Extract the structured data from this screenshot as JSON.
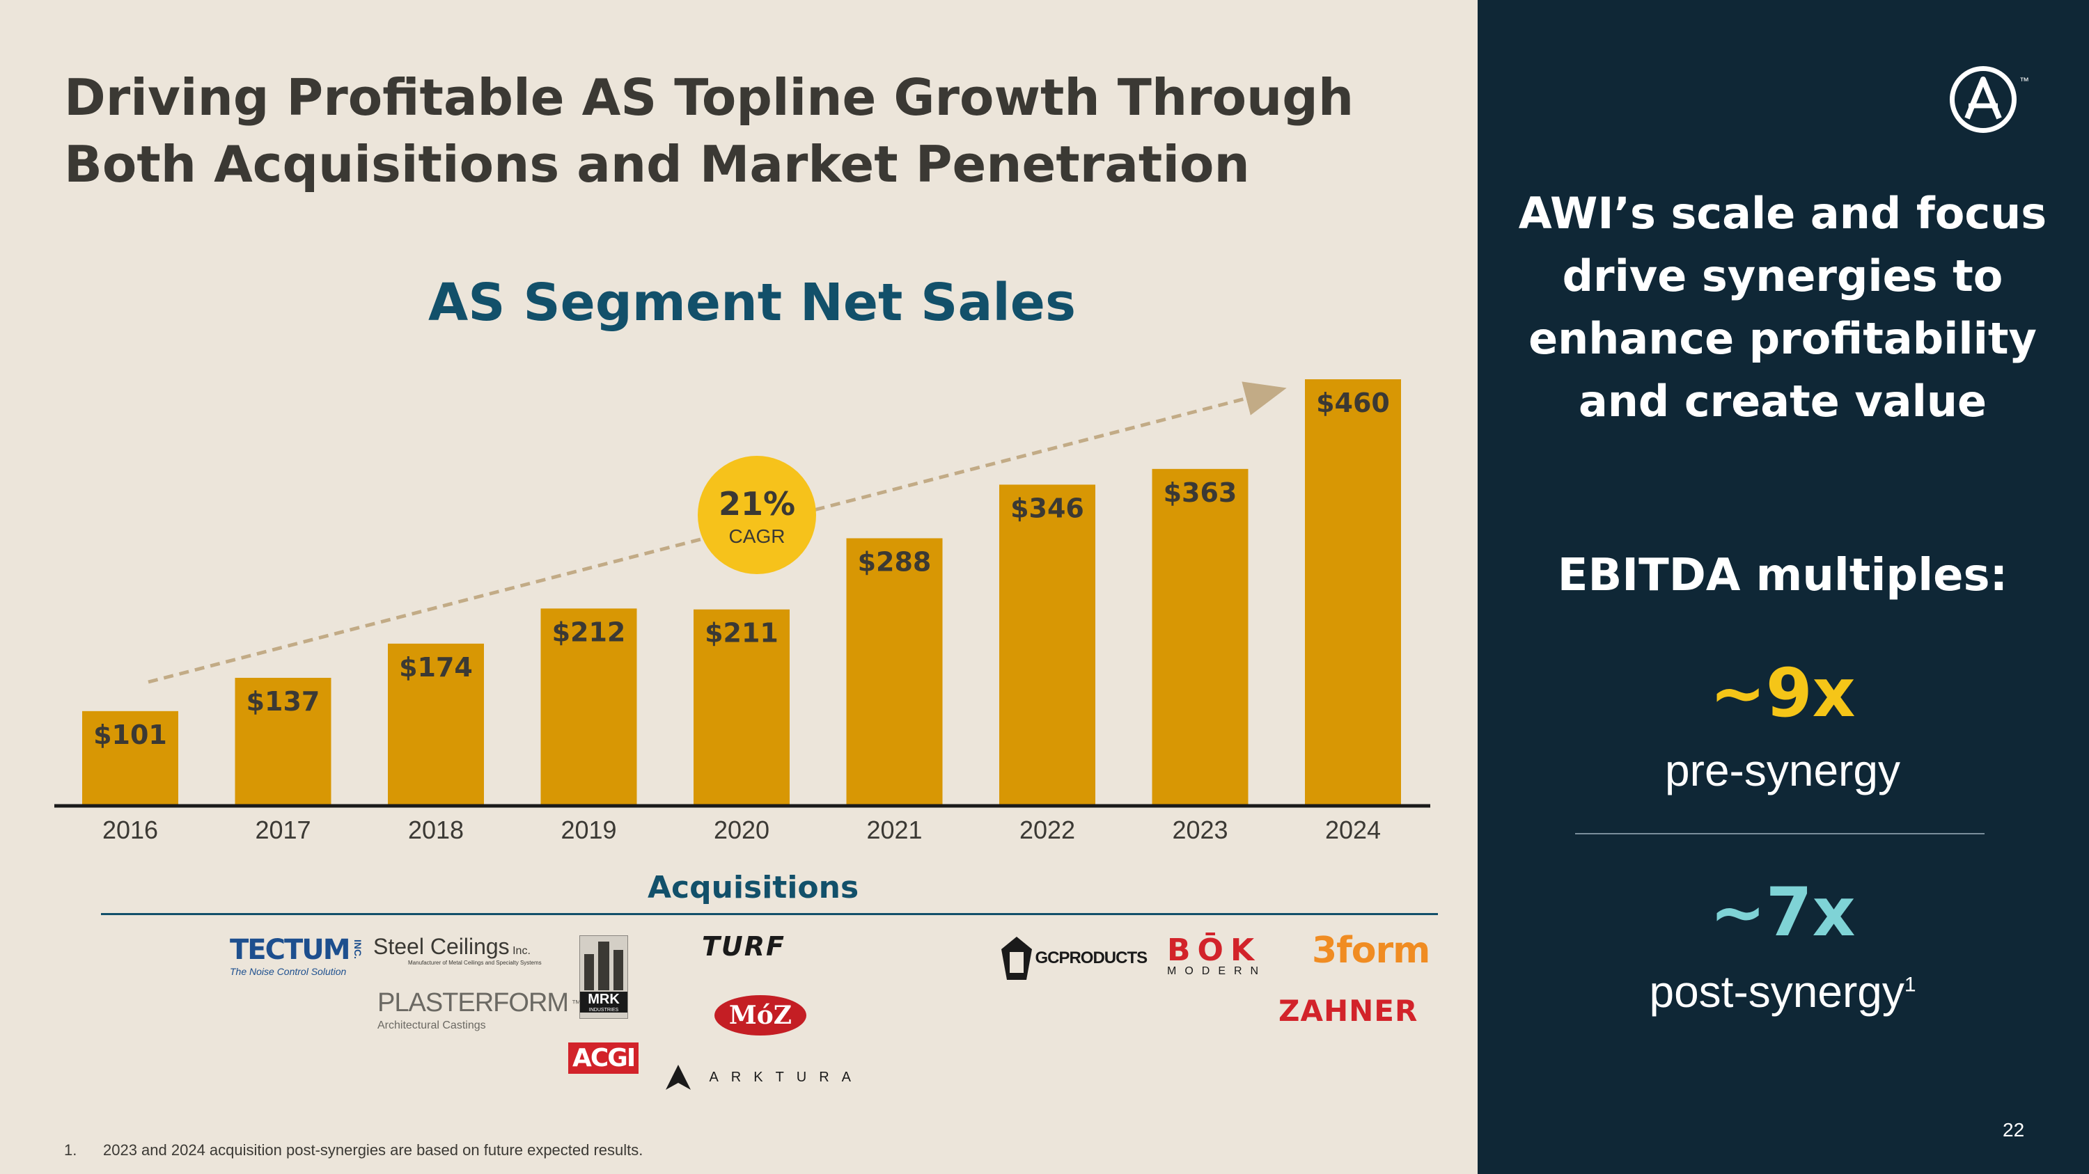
{
  "title": {
    "line1": "Driving Profitable AS Topline Growth Through",
    "line2": "Both Acquisitions and Market Penetration"
  },
  "chart_data": {
    "type": "bar",
    "title": "AS Segment Net Sales",
    "categories": [
      "2016",
      "2017",
      "2018",
      "2019",
      "2020",
      "2021",
      "2022",
      "2023",
      "2024"
    ],
    "values": [
      101,
      137,
      174,
      212,
      211,
      288,
      346,
      363,
      460
    ],
    "labels": [
      "$101",
      "$137",
      "$174",
      "$212",
      "$211",
      "$288",
      "$346",
      "$363",
      "$460"
    ],
    "ylim": [
      0,
      460
    ],
    "bar_color": "#d89704",
    "trend_color": "#c2ab86",
    "cagr": {
      "value": "21%",
      "label": "CAGR",
      "color": "#f6c21b"
    }
  },
  "acquisitions": {
    "title": "Acquisitions",
    "tectum": "TECTUM",
    "tectum_inc": "INC.",
    "tectum_tagline": "The Noise Control Solution",
    "steel_ceilings": "Steel Ceilings",
    "steel_ceilings_inc": "Inc.",
    "steel_ceilings_tagline": "Manufacturer of Metal Ceilings and Specialty Systems",
    "plasterform": "PLASTERFORM",
    "plasterform_tm": "™",
    "plasterform_tagline": "Architectural Castings",
    "mrk": "MRK",
    "mrk_sub": "INDUSTRIES",
    "acgi": "ACGI",
    "turf": "TURF",
    "moz": "MóZ",
    "arktura": "ARKTURA",
    "gc_products": "GCPRODUCTS",
    "bok": "BŌK",
    "bok_sub": "MODERN",
    "threeform": "3form",
    "zahner": "ZAHNER"
  },
  "footnote": {
    "number": "1.",
    "text": "2023 and 2024 acquisition post-synergies are based on future expected results."
  },
  "sidebar": {
    "logo_letter": "A",
    "logo_tm": "™",
    "headline": [
      "AWI’s scale and focus",
      "drive synergies to",
      "enhance profitability",
      "and create value"
    ],
    "ebitda_label": "EBITDA multiples:",
    "pre_value": "~9x",
    "pre_label": "pre-synergy",
    "post_value": "~7x",
    "post_label": "post-synergy",
    "post_sup": "1",
    "page_number": "22"
  }
}
